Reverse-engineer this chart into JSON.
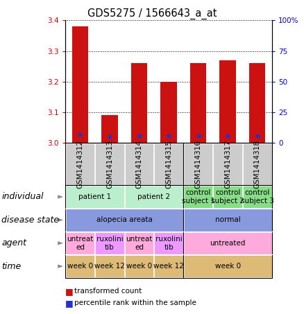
{
  "title": "GDS5275 / 1566643_a_at",
  "samples": [
    "GSM1414312",
    "GSM1414313",
    "GSM1414314",
    "GSM1414315",
    "GSM1414316",
    "GSM1414317",
    "GSM1414318"
  ],
  "transformed_count": [
    3.38,
    3.09,
    3.26,
    3.2,
    3.26,
    3.27,
    3.26
  ],
  "percentile_rank": [
    7,
    5,
    6,
    6,
    6,
    6,
    6
  ],
  "ylim_left": [
    3.0,
    3.4
  ],
  "ylim_right": [
    0,
    100
  ],
  "yticks_left": [
    3.0,
    3.1,
    3.2,
    3.3,
    3.4
  ],
  "yticks_right": [
    0,
    25,
    50,
    75,
    100
  ],
  "bar_color": "#cc1111",
  "percentile_color": "#2233cc",
  "bar_width": 0.55,
  "sample_cell_color": "#cccccc",
  "individual_row": {
    "label": "individual",
    "groups": [
      {
        "cols": [
          0,
          1
        ],
        "text": "patient 1",
        "color": "#bbeecc"
      },
      {
        "cols": [
          2,
          3
        ],
        "text": "patient 2",
        "color": "#bbeecc"
      },
      {
        "cols": [
          4
        ],
        "text": "control\nsubject 1",
        "color": "#88dd88"
      },
      {
        "cols": [
          5
        ],
        "text": "control\nsubject 2",
        "color": "#88dd88"
      },
      {
        "cols": [
          6
        ],
        "text": "control\nsubject 3",
        "color": "#88dd88"
      }
    ]
  },
  "disease_state_row": {
    "label": "disease state",
    "groups": [
      {
        "cols": [
          0,
          1,
          2,
          3
        ],
        "text": "alopecia areata",
        "color": "#8899dd"
      },
      {
        "cols": [
          4,
          5,
          6
        ],
        "text": "normal",
        "color": "#8899dd"
      }
    ]
  },
  "agent_row": {
    "label": "agent",
    "groups": [
      {
        "cols": [
          0
        ],
        "text": "untreat\ned",
        "color": "#ffaadd"
      },
      {
        "cols": [
          1
        ],
        "text": "ruxolini\ntib",
        "color": "#ee99ff"
      },
      {
        "cols": [
          2
        ],
        "text": "untreat\ned",
        "color": "#ffaadd"
      },
      {
        "cols": [
          3
        ],
        "text": "ruxolini\ntib",
        "color": "#ee99ff"
      },
      {
        "cols": [
          4,
          5,
          6
        ],
        "text": "untreated",
        "color": "#ffaadd"
      }
    ]
  },
  "time_row": {
    "label": "time",
    "groups": [
      {
        "cols": [
          0
        ],
        "text": "week 0",
        "color": "#ddbb77"
      },
      {
        "cols": [
          1
        ],
        "text": "week 12",
        "color": "#ddbb77"
      },
      {
        "cols": [
          2
        ],
        "text": "week 0",
        "color": "#ddbb77"
      },
      {
        "cols": [
          3
        ],
        "text": "week 12",
        "color": "#ddbb77"
      },
      {
        "cols": [
          4,
          5,
          6
        ],
        "text": "week 0",
        "color": "#ddbb77"
      }
    ]
  },
  "title_fontsize": 10.5,
  "tick_fontsize": 7.5,
  "label_fontsize": 9,
  "annotation_fontsize": 7.5,
  "sample_fontsize": 7.5,
  "left_tick_color": "#cc0000",
  "right_tick_color": "#0000cc"
}
